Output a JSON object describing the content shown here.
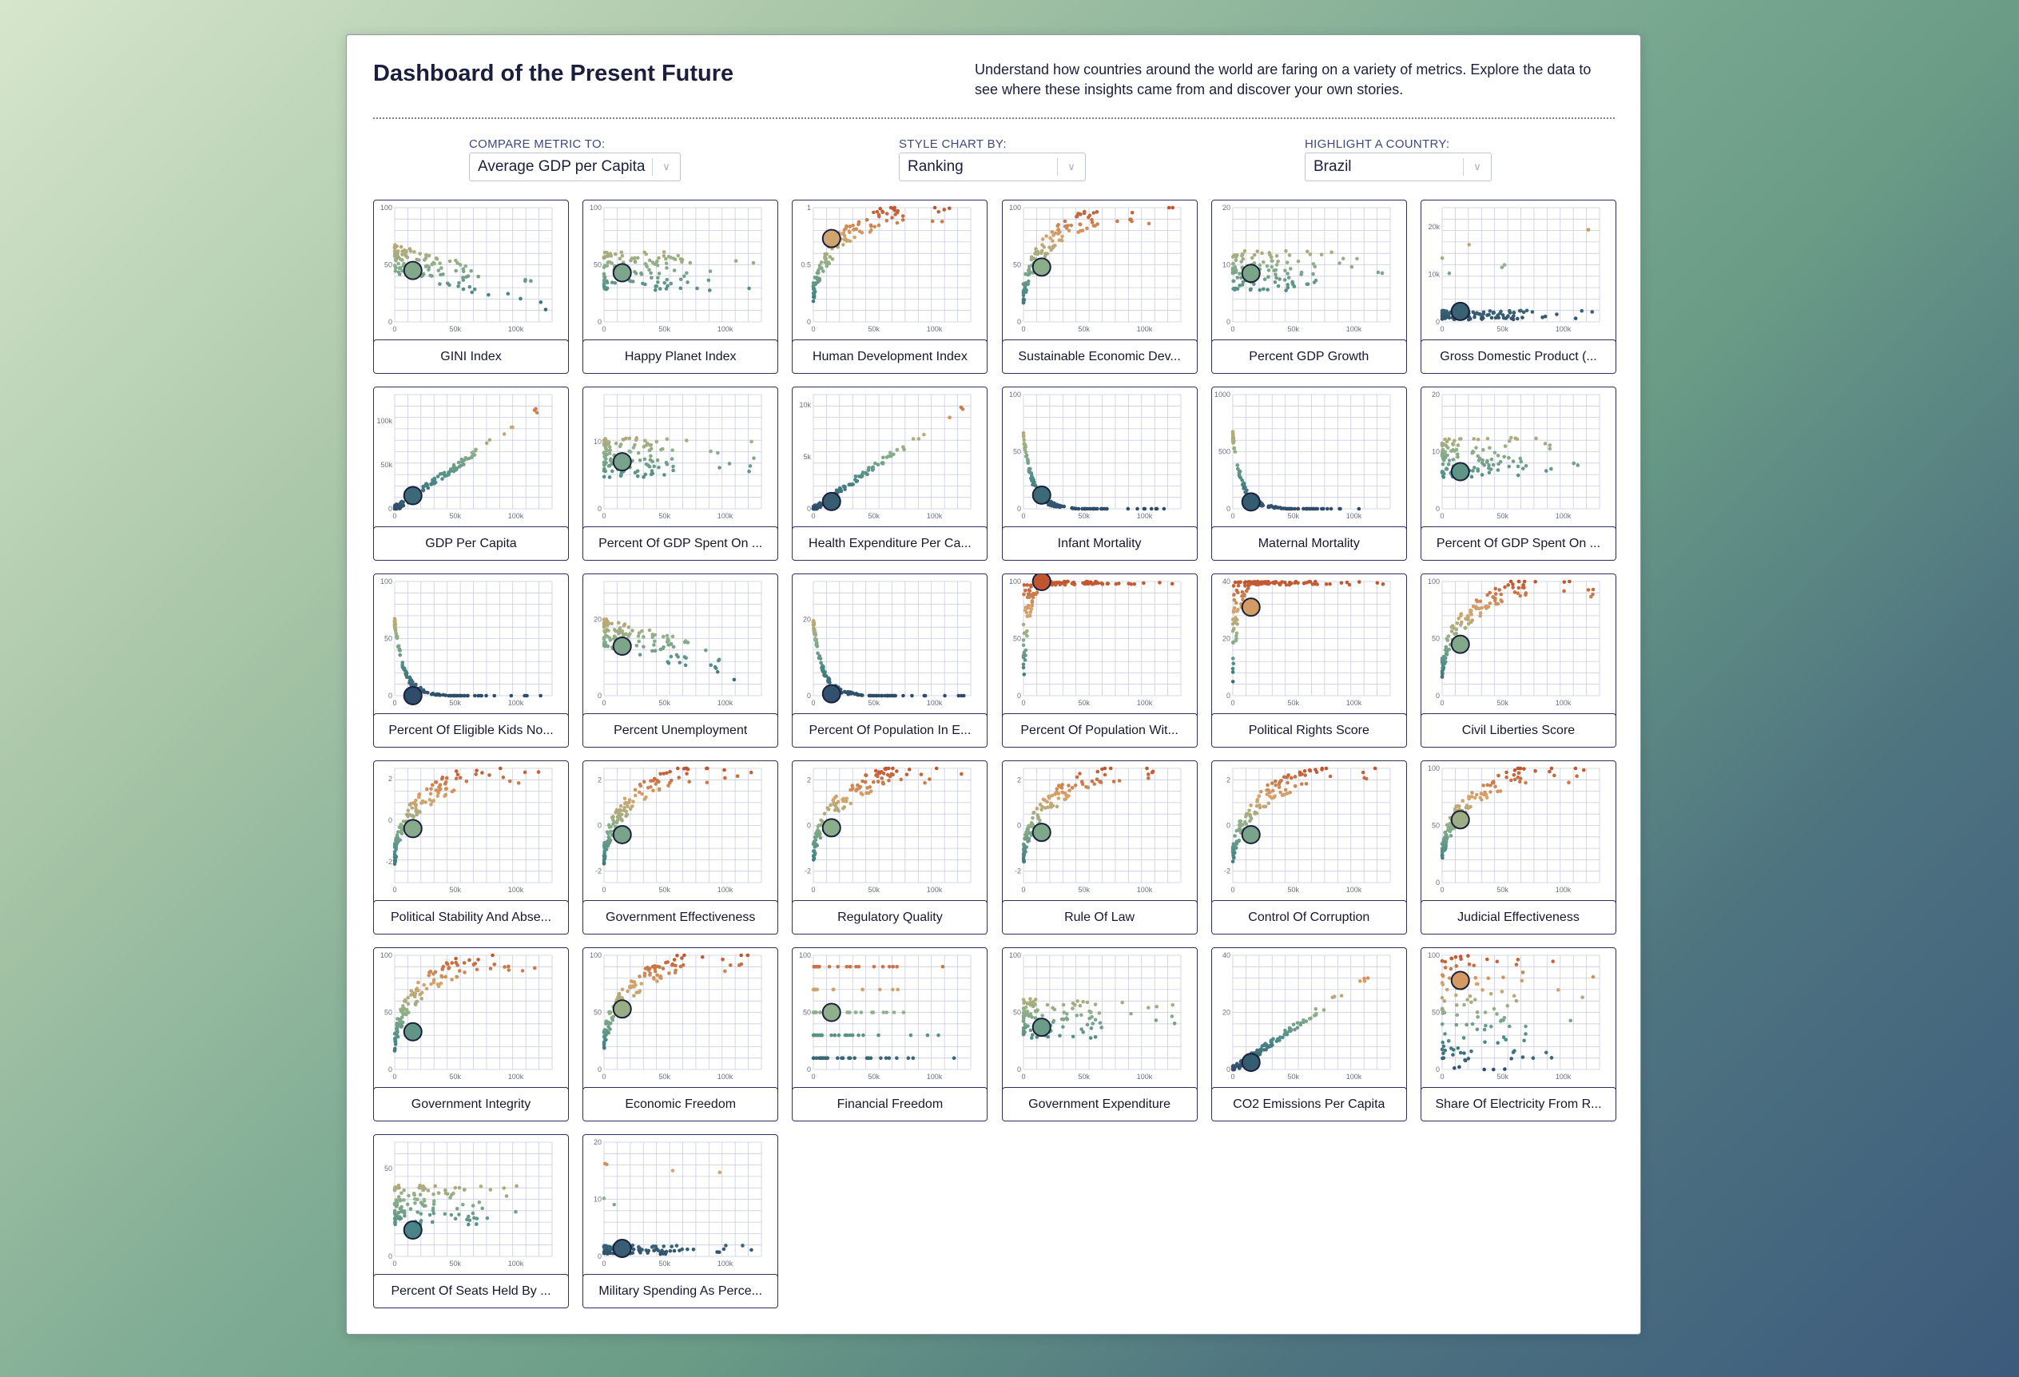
{
  "header": {
    "title": "Dashboard of the Present Future",
    "description": "Understand how countries around the world are faring on a variety of metrics. Explore the data to see where these insights came from and discover your own stories."
  },
  "controls": {
    "compare": {
      "label": "COMPARE METRIC TO:",
      "value": "Average GDP per Capita"
    },
    "style": {
      "label": "STYLE CHART BY:",
      "value": "Ranking"
    },
    "highlight": {
      "label": "HIGHLIGHT A COUNTRY:",
      "value": "Brazil"
    }
  },
  "colors": {
    "low": "#2f4d6a",
    "mid_low": "#4b8a86",
    "mid": "#8fb08a",
    "mid_high": "#d6a46a",
    "high": "#c0562f",
    "grid": "#c9cce0",
    "card_border": "#2c3158"
  },
  "chart_data": [
    {
      "type": "scatter",
      "title": "GINI Index",
      "x_ticks": [
        "0",
        "50k",
        "100k"
      ],
      "y_ticks": [
        "0",
        "50",
        "100"
      ],
      "ylim": [
        0,
        100
      ],
      "pattern": "decline",
      "highlight": {
        "x": 15000,
        "y": 45
      }
    },
    {
      "type": "scatter",
      "title": "Happy Planet Index",
      "x_ticks": [
        "0",
        "50k",
        "100k"
      ],
      "y_ticks": [
        "0",
        "50",
        "100"
      ],
      "ylim": [
        0,
        100
      ],
      "pattern": "flat",
      "highlight": {
        "x": 15000,
        "y": 43
      }
    },
    {
      "type": "scatter",
      "title": "Human Development Index",
      "x_ticks": [
        "0",
        "50k",
        "100k"
      ],
      "y_ticks": [
        "0",
        "0.5",
        "1"
      ],
      "ylim": [
        0,
        1
      ],
      "pattern": "log",
      "highlight": {
        "x": 15000,
        "y": 0.73
      }
    },
    {
      "type": "scatter",
      "title": "Sustainable Economic Dev...",
      "x_ticks": [
        "0",
        "50k",
        "100k"
      ],
      "y_ticks": [
        "0",
        "50",
        "100"
      ],
      "ylim": [
        0,
        100
      ],
      "pattern": "log",
      "highlight": {
        "x": 15000,
        "y": 48
      }
    },
    {
      "type": "scatter",
      "title": "Percent GDP Growth",
      "x_ticks": [
        "0",
        "50k",
        "100k"
      ],
      "y_ticks": [
        "0",
        "10",
        "20"
      ],
      "ylim": [
        0,
        20
      ],
      "pattern": "flat",
      "highlight": {
        "x": 15000,
        "y": 8.5
      }
    },
    {
      "type": "scatter",
      "title": "Gross Domestic Product (...",
      "x_ticks": [
        "0",
        "50k",
        "100k"
      ],
      "y_ticks": [
        "0",
        "10k",
        "20k"
      ],
      "ylim": [
        0,
        24000
      ],
      "pattern": "floor",
      "highlight": {
        "x": 15000,
        "y": 2200
      }
    },
    {
      "type": "scatter",
      "title": "GDP Per Capita",
      "x_ticks": [
        "0",
        "50k",
        "100k"
      ],
      "y_ticks": [
        "0",
        "50k",
        "100k"
      ],
      "ylim": [
        0,
        130000
      ],
      "pattern": "linear",
      "highlight": {
        "x": 15000,
        "y": 15000
      }
    },
    {
      "type": "scatter",
      "title": "Percent Of GDP Spent On ...",
      "x_ticks": [
        "0",
        "50k",
        "100k"
      ],
      "y_ticks": [
        "0",
        "10"
      ],
      "ylim": [
        0,
        17
      ],
      "pattern": "flat",
      "highlight": {
        "x": 15000,
        "y": 7
      }
    },
    {
      "type": "scatter",
      "title": "Health Expenditure Per Ca...",
      "x_ticks": [
        "0",
        "50k",
        "100k"
      ],
      "y_ticks": [
        "0",
        "5k",
        "10k"
      ],
      "ylim": [
        0,
        11000
      ],
      "pattern": "linear",
      "highlight": {
        "x": 15000,
        "y": 700
      }
    },
    {
      "type": "scatter",
      "title": "Infant Mortality",
      "x_ticks": [
        "0",
        "50k",
        "100k"
      ],
      "y_ticks": [
        "0",
        "50",
        "100"
      ],
      "ylim": [
        0,
        100
      ],
      "pattern": "decay",
      "highlight": {
        "x": 15000,
        "y": 12
      }
    },
    {
      "type": "scatter",
      "title": "Maternal Mortality",
      "x_ticks": [
        "0",
        "50k",
        "100k"
      ],
      "y_ticks": [
        "0",
        "500",
        "1000"
      ],
      "ylim": [
        0,
        1000
      ],
      "pattern": "decay",
      "highlight": {
        "x": 15000,
        "y": 60
      }
    },
    {
      "type": "scatter",
      "title": "Percent Of GDP Spent On ...",
      "x_ticks": [
        "0",
        "50k",
        "100k"
      ],
      "y_ticks": [
        "0",
        "10",
        "20"
      ],
      "ylim": [
        0,
        20
      ],
      "pattern": "flat",
      "highlight": {
        "x": 15000,
        "y": 6.5
      }
    },
    {
      "type": "scatter",
      "title": "Percent Of Eligible Kids No...",
      "x_ticks": [
        "0",
        "50k",
        "100k"
      ],
      "y_ticks": [
        "0",
        "50",
        "100"
      ],
      "ylim": [
        0,
        100
      ],
      "pattern": "decay",
      "highlight": {
        "x": 15000,
        "y": 0
      }
    },
    {
      "type": "scatter",
      "title": "Percent Unemployment",
      "x_ticks": [
        "0",
        "50k",
        "100k"
      ],
      "y_ticks": [
        "0",
        "20"
      ],
      "ylim": [
        0,
        30
      ],
      "pattern": "decline",
      "highlight": {
        "x": 15000,
        "y": 13
      }
    },
    {
      "type": "scatter",
      "title": "Percent Of Population In E...",
      "x_ticks": [
        "0",
        "50k",
        "100k"
      ],
      "y_ticks": [
        "0",
        "20"
      ],
      "ylim": [
        0,
        30
      ],
      "pattern": "decay",
      "highlight": {
        "x": 15000,
        "y": 0.5
      }
    },
    {
      "type": "scatter",
      "title": "Percent Of Population Wit...",
      "x_ticks": [
        "0",
        "50k",
        "100k"
      ],
      "y_ticks": [
        "0",
        "50",
        "100"
      ],
      "ylim": [
        0,
        100
      ],
      "pattern": "ceiling",
      "highlight": {
        "x": 15000,
        "y": 100
      }
    },
    {
      "type": "scatter",
      "title": "Political Rights Score",
      "x_ticks": [
        "0",
        "50k",
        "100k"
      ],
      "y_ticks": [
        "0",
        "20",
        "40"
      ],
      "ylim": [
        0,
        40
      ],
      "pattern": "ceiling",
      "highlight": {
        "x": 15000,
        "y": 31
      }
    },
    {
      "type": "scatter",
      "title": "Civil Liberties Score",
      "x_ticks": [
        "0",
        "50k",
        "100k"
      ],
      "y_ticks": [
        "0",
        "50",
        "100"
      ],
      "ylim": [
        0,
        100
      ],
      "pattern": "log",
      "highlight": {
        "x": 15000,
        "y": 45
      }
    },
    {
      "type": "scatter",
      "title": "Political Stability And Abse...",
      "x_ticks": [
        "0",
        "50k",
        "100k"
      ],
      "y_ticks": [
        "-2",
        "0",
        "2"
      ],
      "ylim": [
        -3,
        2.5
      ],
      "pattern": "log",
      "highlight": {
        "x": 15000,
        "y": -0.4
      }
    },
    {
      "type": "scatter",
      "title": "Government Effectiveness",
      "x_ticks": [
        "0",
        "50k",
        "100k"
      ],
      "y_ticks": [
        "-2",
        "0",
        "2"
      ],
      "ylim": [
        -2.5,
        2.5
      ],
      "pattern": "log",
      "highlight": {
        "x": 15000,
        "y": -0.4
      }
    },
    {
      "type": "scatter",
      "title": "Regulatory Quality",
      "x_ticks": [
        "0",
        "50k",
        "100k"
      ],
      "y_ticks": [
        "-2",
        "0",
        "2"
      ],
      "ylim": [
        -2.5,
        2.5
      ],
      "pattern": "log",
      "highlight": {
        "x": 15000,
        "y": -0.1
      }
    },
    {
      "type": "scatter",
      "title": "Rule Of Law",
      "x_ticks": [
        "0",
        "50k",
        "100k"
      ],
      "y_ticks": [
        "-2",
        "0",
        "2"
      ],
      "ylim": [
        -2.5,
        2.5
      ],
      "pattern": "log",
      "highlight": {
        "x": 15000,
        "y": -0.3
      }
    },
    {
      "type": "scatter",
      "title": "Control Of Corruption",
      "x_ticks": [
        "0",
        "50k",
        "100k"
      ],
      "y_ticks": [
        "-2",
        "0",
        "2"
      ],
      "ylim": [
        -2.5,
        2.5
      ],
      "pattern": "log",
      "highlight": {
        "x": 15000,
        "y": -0.4
      }
    },
    {
      "type": "scatter",
      "title": "Judicial Effectiveness",
      "x_ticks": [
        "0",
        "50k",
        "100k"
      ],
      "y_ticks": [
        "0",
        "50",
        "100"
      ],
      "ylim": [
        0,
        100
      ],
      "pattern": "log",
      "highlight": {
        "x": 15000,
        "y": 55
      }
    },
    {
      "type": "scatter",
      "title": "Government Integrity",
      "x_ticks": [
        "0",
        "50k",
        "100k"
      ],
      "y_ticks": [
        "0",
        "50",
        "100"
      ],
      "ylim": [
        0,
        100
      ],
      "pattern": "log",
      "highlight": {
        "x": 15000,
        "y": 33
      }
    },
    {
      "type": "scatter",
      "title": "Economic Freedom",
      "x_ticks": [
        "0",
        "50k",
        "100k"
      ],
      "y_ticks": [
        "0",
        "50",
        "100"
      ],
      "ylim": [
        0,
        100
      ],
      "pattern": "log",
      "highlight": {
        "x": 15000,
        "y": 53
      }
    },
    {
      "type": "scatter",
      "title": "Financial Freedom",
      "x_ticks": [
        "0",
        "50k",
        "100k"
      ],
      "y_ticks": [
        "0",
        "50",
        "100"
      ],
      "ylim": [
        0,
        100
      ],
      "pattern": "bands",
      "highlight": {
        "x": 15000,
        "y": 50
      }
    },
    {
      "type": "scatter",
      "title": "Government Expenditure",
      "x_ticks": [
        "0",
        "50k",
        "100k"
      ],
      "y_ticks": [
        "0",
        "50",
        "100"
      ],
      "ylim": [
        0,
        100
      ],
      "pattern": "flat",
      "highlight": {
        "x": 15000,
        "y": 37
      }
    },
    {
      "type": "scatter",
      "title": "CO2 Emissions Per Capita",
      "x_ticks": [
        "0",
        "50k",
        "100k"
      ],
      "y_ticks": [
        "0",
        "20",
        "40"
      ],
      "ylim": [
        0,
        40
      ],
      "pattern": "linear",
      "highlight": {
        "x": 15000,
        "y": 2.5
      }
    },
    {
      "type": "scatter",
      "title": "Share Of Electricity From R...",
      "x_ticks": [
        "0",
        "50k",
        "100k"
      ],
      "y_ticks": [
        "0",
        "50",
        "100"
      ],
      "ylim": [
        0,
        100
      ],
      "pattern": "spread",
      "highlight": {
        "x": 15000,
        "y": 78
      }
    },
    {
      "type": "scatter",
      "title": "Percent Of Seats Held By ...",
      "x_ticks": [
        "0",
        "50k",
        "100k"
      ],
      "y_ticks": [
        "0",
        "50"
      ],
      "ylim": [
        0,
        65
      ],
      "pattern": "flat",
      "highlight": {
        "x": 15000,
        "y": 15
      }
    },
    {
      "type": "scatter",
      "title": "Military Spending As Perce...",
      "x_ticks": [
        "0",
        "50k",
        "100k"
      ],
      "y_ticks": [
        "0",
        "10",
        "20"
      ],
      "ylim": [
        0,
        20
      ],
      "pattern": "floor",
      "highlight": {
        "x": 15000,
        "y": 1.4
      }
    }
  ]
}
